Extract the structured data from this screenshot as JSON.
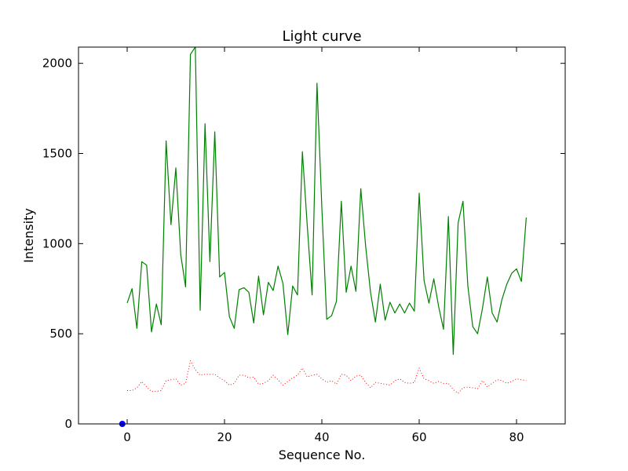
{
  "chart_data": {
    "type": "line",
    "title": "Light curve",
    "xlabel": "Sequence No.",
    "ylabel": "Intensity",
    "xlim": [
      -10,
      90
    ],
    "ylim": [
      0,
      2090
    ],
    "xticks": [
      0,
      20,
      40,
      60,
      80
    ],
    "yticks": [
      0,
      500,
      1000,
      1500,
      2000
    ],
    "grid": false,
    "series": [
      {
        "style": "solid",
        "color": "#008000",
        "x": [
          0,
          1,
          2,
          3,
          4,
          5,
          6,
          7,
          8,
          9,
          10,
          11,
          12,
          13,
          14,
          15,
          16,
          17,
          18,
          19,
          20,
          21,
          22,
          23,
          24,
          25,
          26,
          27,
          28,
          29,
          30,
          31,
          32,
          33,
          34,
          35,
          36,
          37,
          38,
          39,
          40,
          41,
          42,
          43,
          44,
          45,
          46,
          47,
          48,
          49,
          50,
          51,
          52,
          53,
          54,
          55,
          56,
          57,
          58,
          59,
          60,
          61,
          62,
          63,
          64,
          65,
          66,
          67,
          68,
          69,
          70,
          71,
          72,
          73,
          74,
          75,
          76,
          77,
          78,
          79,
          80,
          81,
          82
        ],
        "y": [
          670,
          750,
          530,
          900,
          880,
          510,
          665,
          550,
          1570,
          1105,
          1420,
          940,
          760,
          2050,
          2090,
          630,
          1665,
          900,
          1620,
          815,
          840,
          595,
          530,
          745,
          755,
          730,
          560,
          820,
          605,
          785,
          740,
          875,
          780,
          495,
          765,
          715,
          1510,
          1100,
          715,
          1890,
          1200,
          580,
          600,
          680,
          1235,
          730,
          875,
          735,
          1305,
          985,
          730,
          565,
          775,
          575,
          675,
          615,
          665,
          615,
          670,
          625,
          1280,
          795,
          670,
          805,
          650,
          525,
          1150,
          385,
          1115,
          1235,
          765,
          540,
          500,
          640,
          815,
          615,
          565,
          690,
          775,
          835,
          860,
          790,
          1145
        ]
      },
      {
        "style": "dotted",
        "color": "#ff0000",
        "x": [
          0,
          1,
          2,
          3,
          4,
          5,
          6,
          7,
          8,
          9,
          10,
          11,
          12,
          13,
          14,
          15,
          16,
          17,
          18,
          19,
          20,
          21,
          22,
          23,
          24,
          25,
          26,
          27,
          28,
          29,
          30,
          31,
          32,
          33,
          34,
          35,
          36,
          37,
          38,
          39,
          40,
          41,
          42,
          43,
          44,
          45,
          46,
          47,
          48,
          49,
          50,
          51,
          52,
          53,
          54,
          55,
          56,
          57,
          58,
          59,
          60,
          61,
          62,
          63,
          64,
          65,
          66,
          67,
          68,
          69,
          70,
          71,
          72,
          73,
          74,
          75,
          76,
          77,
          78,
          79,
          80,
          81,
          82
        ],
        "y": [
          185,
          185,
          200,
          235,
          205,
          180,
          180,
          185,
          240,
          245,
          250,
          215,
          225,
          350,
          300,
          270,
          275,
          275,
          275,
          255,
          240,
          215,
          225,
          270,
          270,
          255,
          260,
          220,
          225,
          240,
          270,
          245,
          215,
          235,
          255,
          270,
          310,
          260,
          270,
          275,
          250,
          230,
          240,
          220,
          275,
          270,
          240,
          265,
          270,
          230,
          200,
          230,
          225,
          220,
          215,
          240,
          250,
          230,
          225,
          230,
          310,
          250,
          240,
          225,
          235,
          225,
          225,
          190,
          170,
          200,
          205,
          200,
          195,
          240,
          205,
          225,
          245,
          240,
          225,
          235,
          250,
          245,
          240
        ]
      },
      {
        "style": "marker",
        "color": "#0000ff",
        "x": [
          -1
        ],
        "y": [
          0
        ]
      }
    ]
  }
}
